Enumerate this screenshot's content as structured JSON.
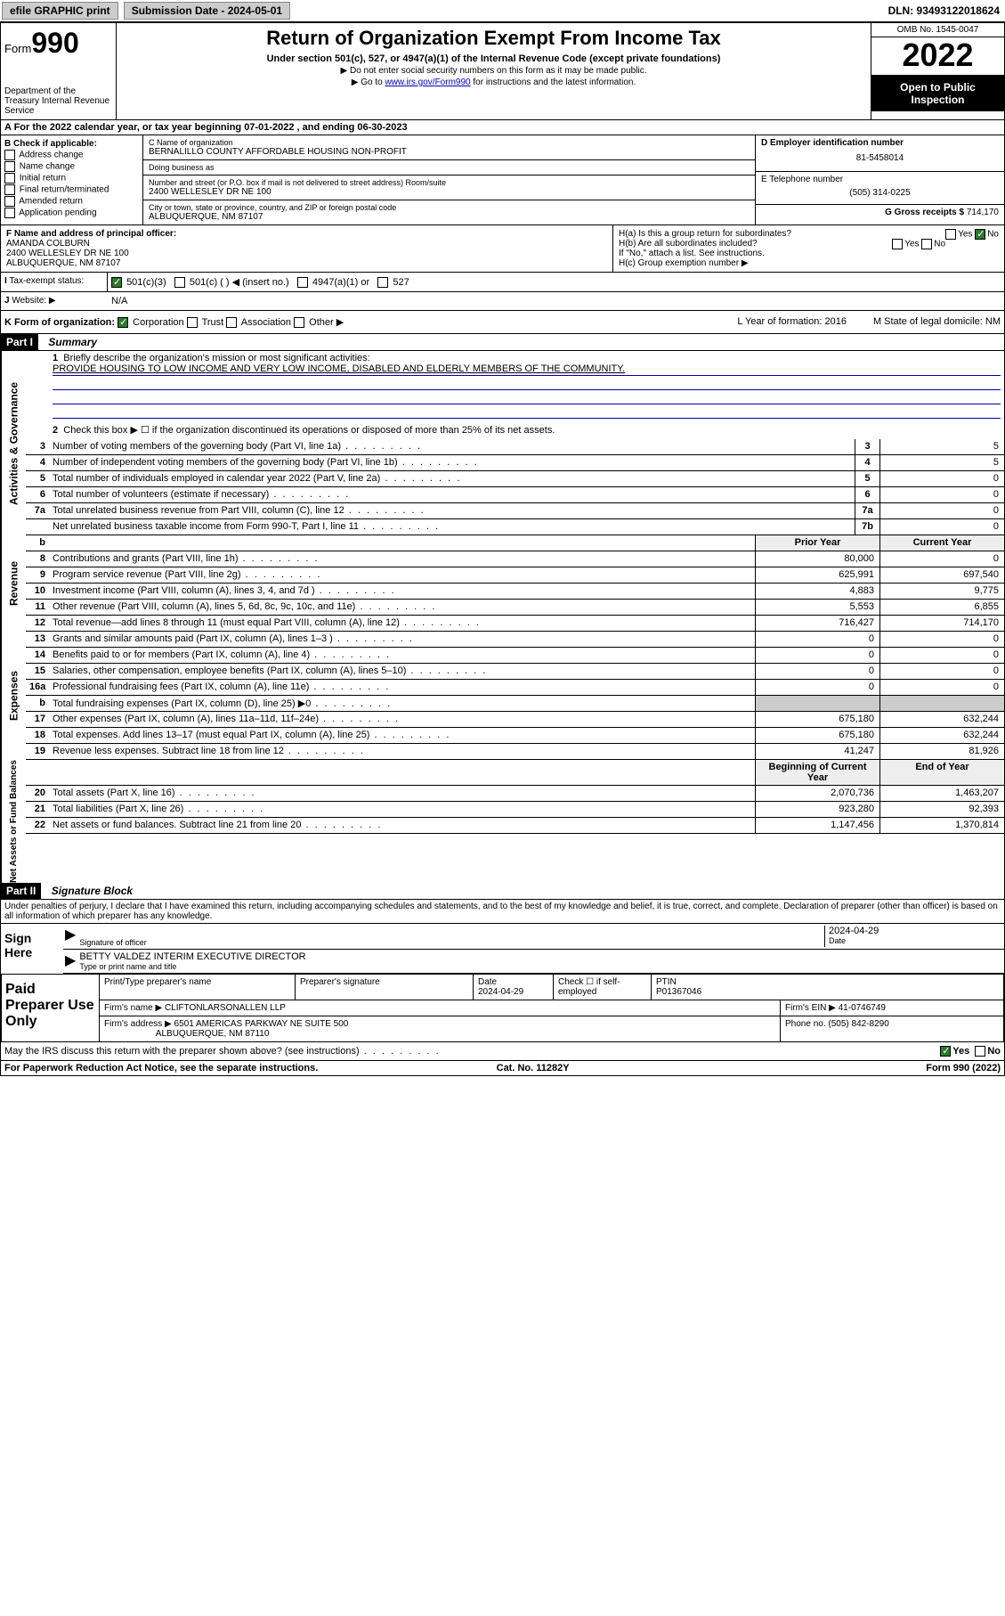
{
  "topbar": {
    "efile": "efile GRAPHIC print",
    "sub_label": "Submission Date - 2024-05-01",
    "dln": "DLN: 93493122018624"
  },
  "header": {
    "form_word": "Form",
    "form_num": "990",
    "dept": "Department of the Treasury Internal Revenue Service",
    "title": "Return of Organization Exempt From Income Tax",
    "subtitle": "Under section 501(c), 527, or 4947(a)(1) of the Internal Revenue Code (except private foundations)",
    "note1": "▶ Do not enter social security numbers on this form as it may be made public.",
    "note2_pre": "▶ Go to ",
    "note2_link": "www.irs.gov/Form990",
    "note2_post": " for instructions and the latest information.",
    "omb": "OMB No. 1545-0047",
    "year": "2022",
    "inspect": "Open to Public Inspection"
  },
  "rowA": "A For the 2022 calendar year, or tax year beginning 07-01-2022    , and ending 06-30-2023",
  "colB": {
    "hd": "B Check if applicable:",
    "opts": [
      "Address change",
      "Name change",
      "Initial return",
      "Final return/terminated",
      "Amended return",
      "Application pending"
    ]
  },
  "colC": {
    "name_lbl": "C Name of organization",
    "name": "BERNALILLO COUNTY AFFORDABLE HOUSING NON-PROFIT",
    "dba_lbl": "Doing business as",
    "addr_lbl": "Number and street (or P.O. box if mail is not delivered to street address)    Room/suite",
    "addr": "2400 WELLESLEY DR NE 100",
    "city_lbl": "City or town, state or province, country, and ZIP or foreign postal code",
    "city": "ALBUQUERQUE, NM  87107"
  },
  "colD": {
    "ein_lbl": "D Employer identification number",
    "ein": "81-5458014",
    "tel_lbl": "E Telephone number",
    "tel": "(505) 314-0225",
    "gross_lbl": "G Gross receipts $",
    "gross": "714,170"
  },
  "rowF": {
    "lbl": "F Name and address of principal officer:",
    "name": "AMANDA COLBURN",
    "addr1": "2400 WELLESLEY DR NE 100",
    "addr2": "ALBUQUERQUE, NM  87107"
  },
  "rowH": {
    "ha": "H(a)  Is this a group return for subordinates?",
    "hb": "H(b)  Are all subordinates included?",
    "hb_note": "If \"No,\" attach a list. See instructions.",
    "hc": "H(c)  Group exemption number ▶"
  },
  "rowI": {
    "lbl": "Tax-exempt status:",
    "o1": "501(c)(3)",
    "o2": "501(c) (  ) ◀ (insert no.)",
    "o3": "4947(a)(1) or",
    "o4": "527"
  },
  "rowJ": {
    "lbl": "Website: ▶",
    "val": "N/A"
  },
  "rowK": {
    "lbl": "K Form of organization:",
    "opts": [
      "Corporation",
      "Trust",
      "Association",
      "Other ▶"
    ],
    "l": "L Year of formation: 2016",
    "m": "M State of legal domicile: NM"
  },
  "part1": {
    "hdr": "Part I",
    "title": "Summary",
    "q1": "Briefly describe the organization's mission or most significant activities:",
    "mission": "PROVIDE HOUSING TO LOW INCOME AND VERY LOW INCOME, DISABLED AND ELDERLY MEMBERS OF THE COMMUNITY.",
    "q2": "Check this box ▶ ☐  if the organization discontinued its operations or disposed of more than 25% of its net assets.",
    "lines_gov": [
      {
        "n": "3",
        "t": "Number of voting members of the governing body (Part VI, line 1a)",
        "bn": "3",
        "v": "5"
      },
      {
        "n": "4",
        "t": "Number of independent voting members of the governing body (Part VI, line 1b)",
        "bn": "4",
        "v": "5"
      },
      {
        "n": "5",
        "t": "Total number of individuals employed in calendar year 2022 (Part V, line 2a)",
        "bn": "5",
        "v": "0"
      },
      {
        "n": "6",
        "t": "Total number of volunteers (estimate if necessary)",
        "bn": "6",
        "v": "0"
      },
      {
        "n": "7a",
        "t": "Total unrelated business revenue from Part VIII, column (C), line 12",
        "bn": "7a",
        "v": "0"
      },
      {
        "n": "",
        "t": "Net unrelated business taxable income from Form 990-T, Part I, line 11",
        "bn": "7b",
        "v": "0"
      }
    ],
    "col_hdr_prior": "Prior Year",
    "col_hdr_curr": "Current Year",
    "lines_rev": [
      {
        "n": "8",
        "t": "Contributions and grants (Part VIII, line 1h)",
        "p": "80,000",
        "c": "0"
      },
      {
        "n": "9",
        "t": "Program service revenue (Part VIII, line 2g)",
        "p": "625,991",
        "c": "697,540"
      },
      {
        "n": "10",
        "t": "Investment income (Part VIII, column (A), lines 3, 4, and 7d )",
        "p": "4,883",
        "c": "9,775"
      },
      {
        "n": "11",
        "t": "Other revenue (Part VIII, column (A), lines 5, 6d, 8c, 9c, 10c, and 11e)",
        "p": "5,553",
        "c": "6,855"
      },
      {
        "n": "12",
        "t": "Total revenue—add lines 8 through 11 (must equal Part VIII, column (A), line 12)",
        "p": "716,427",
        "c": "714,170"
      }
    ],
    "lines_exp": [
      {
        "n": "13",
        "t": "Grants and similar amounts paid (Part IX, column (A), lines 1–3 )",
        "p": "0",
        "c": "0"
      },
      {
        "n": "14",
        "t": "Benefits paid to or for members (Part IX, column (A), line 4)",
        "p": "0",
        "c": "0"
      },
      {
        "n": "15",
        "t": "Salaries, other compensation, employee benefits (Part IX, column (A), lines 5–10)",
        "p": "0",
        "c": "0"
      },
      {
        "n": "16a",
        "t": "Professional fundraising fees (Part IX, column (A), line 11e)",
        "p": "0",
        "c": "0"
      },
      {
        "n": "b",
        "t": "Total fundraising expenses (Part IX, column (D), line 25) ▶0",
        "p": "",
        "c": "",
        "shade": true
      },
      {
        "n": "17",
        "t": "Other expenses (Part IX, column (A), lines 11a–11d, 11f–24e)",
        "p": "675,180",
        "c": "632,244"
      },
      {
        "n": "18",
        "t": "Total expenses. Add lines 13–17 (must equal Part IX, column (A), line 25)",
        "p": "675,180",
        "c": "632,244"
      },
      {
        "n": "19",
        "t": "Revenue less expenses. Subtract line 18 from line 12",
        "p": "41,247",
        "c": "81,926"
      }
    ],
    "col_hdr_beg": "Beginning of Current Year",
    "col_hdr_end": "End of Year",
    "lines_net": [
      {
        "n": "20",
        "t": "Total assets (Part X, line 16)",
        "p": "2,070,736",
        "c": "1,463,207"
      },
      {
        "n": "21",
        "t": "Total liabilities (Part X, line 26)",
        "p": "923,280",
        "c": "92,393"
      },
      {
        "n": "22",
        "t": "Net assets or fund balances. Subtract line 21 from line 20",
        "p": "1,147,456",
        "c": "1,370,814"
      }
    ]
  },
  "part2": {
    "hdr": "Part II",
    "title": "Signature Block",
    "decl": "Under penalties of perjury, I declare that I have examined this return, including accompanying schedules and statements, and to the best of my knowledge and belief, it is true, correct, and complete. Declaration of preparer (other than officer) is based on all information of which preparer has any knowledge.",
    "sign_here": "Sign Here",
    "sig_off": "Signature of officer",
    "date_lbl": "Date",
    "date": "2024-04-29",
    "officer": "BETTY VALDEZ  INTERIM EXECUTIVE DIRECTOR",
    "officer_lbl": "Type or print name and title",
    "paid": "Paid Preparer Use Only",
    "p_name_lbl": "Print/Type preparer's name",
    "p_sig_lbl": "Preparer's signature",
    "p_date_lbl": "Date",
    "p_date": "2024-04-29",
    "p_check": "Check ☐ if self-employed",
    "ptin_lbl": "PTIN",
    "ptin": "P01367046",
    "firm_name_lbl": "Firm's name    ▶",
    "firm_name": "CLIFTONLARSONALLEN LLP",
    "firm_ein_lbl": "Firm's EIN ▶",
    "firm_ein": "41-0746749",
    "firm_addr_lbl": "Firm's address ▶",
    "firm_addr1": "6501 AMERICAS PARKWAY NE SUITE 500",
    "firm_addr2": "ALBUQUERQUE, NM  87110",
    "phone_lbl": "Phone no.",
    "phone": "(505) 842-8290",
    "discuss": "May the IRS discuss this return with the preparer shown above? (see instructions)"
  },
  "footer": {
    "l": "For Paperwork Reduction Act Notice, see the separate instructions.",
    "m": "Cat. No. 11282Y",
    "r": "Form 990 (2022)"
  },
  "yesno": {
    "yes": "Yes",
    "no": "No"
  }
}
